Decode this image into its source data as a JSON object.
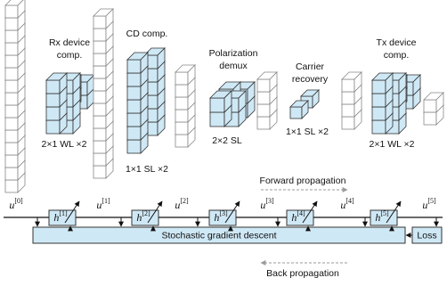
{
  "modules": [
    {
      "title": [
        "Rx device",
        "comp."
      ],
      "config": "2×1 WL ×2"
    },
    {
      "title": [
        "CD comp."
      ],
      "config": "1×1 SL ×2"
    },
    {
      "title": [
        "Polarization",
        "demux"
      ],
      "config": "2×2 SL"
    },
    {
      "title": [
        "Carrier",
        "recovery"
      ],
      "config": "1×1 SL ×2"
    },
    {
      "title": [
        "Tx device",
        "comp."
      ],
      "config": "2×1 WL ×2"
    }
  ],
  "signals": [
    {
      "base": "u",
      "sup": "[0]"
    },
    {
      "base": "u",
      "sup": "[1]"
    },
    {
      "base": "u",
      "sup": "[2]"
    },
    {
      "base": "u",
      "sup": "[3]"
    },
    {
      "base": "u",
      "sup": "[4]"
    },
    {
      "base": "u",
      "sup": "[5]"
    }
  ],
  "layers": [
    {
      "base": "h",
      "sup": "[1]"
    },
    {
      "base": "h",
      "sup": "[2]"
    },
    {
      "base": "h",
      "sup": "[3]"
    },
    {
      "base": "h",
      "sup": "[4]"
    },
    {
      "base": "h",
      "sup": "[5]"
    }
  ],
  "forward_label": "Forward propagation",
  "back_label": "Back propagation",
  "optimizer": "Stochastic gradient descent",
  "loss": "Loss"
}
